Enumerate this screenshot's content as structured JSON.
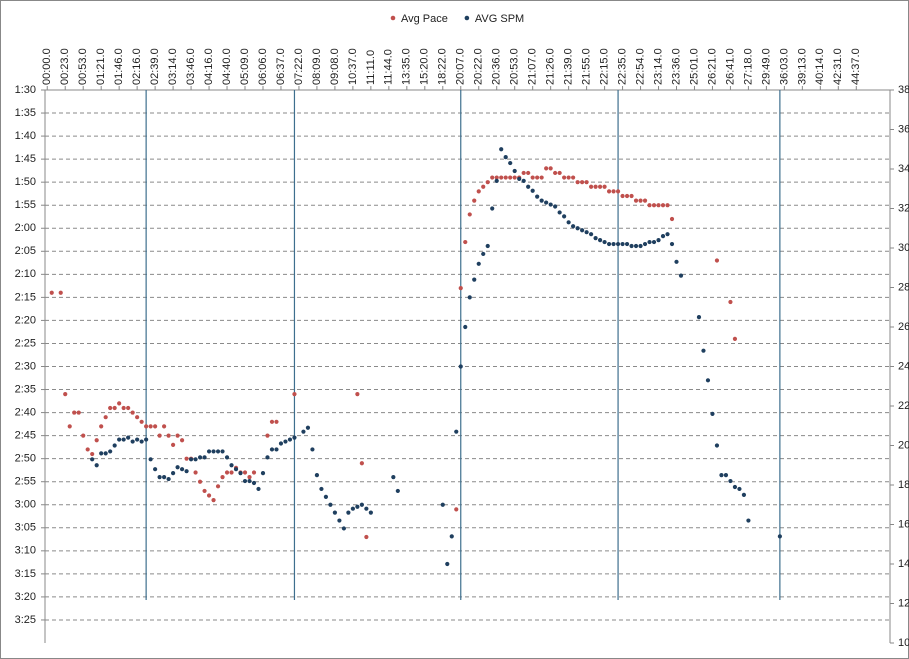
{
  "chart_data": {
    "type": "scatter",
    "legend": "top",
    "grid": true,
    "y_inverted": true,
    "categories": [
      "00:00.0",
      null,
      null,
      null,
      "00:23.0",
      null,
      null,
      null,
      "00:53.0",
      null,
      null,
      null,
      "01:21.0",
      null,
      null,
      null,
      "01:46.0",
      null,
      null,
      null,
      "02:16.0",
      null,
      null,
      null,
      "02:39.0",
      null,
      null,
      null,
      "03:14.0",
      null,
      null,
      null,
      "03:46.0",
      null,
      null,
      null,
      "04:16.0",
      null,
      null,
      null,
      "04:40.0",
      null,
      null,
      null,
      "05:09.0",
      null,
      null,
      null,
      "06:06.0",
      null,
      null,
      null,
      "06:37.0",
      null,
      null,
      null,
      "07:22.0",
      null,
      null,
      null,
      "08:09.0",
      null,
      null,
      null,
      "09:08.0",
      null,
      null,
      null,
      "10:37.0",
      null,
      null,
      null,
      "11:11.0",
      null,
      null,
      null,
      "11:44.0",
      null,
      null,
      null,
      "13:35.0",
      null,
      null,
      null,
      "15:20.0",
      null,
      null,
      null,
      "18:22.0",
      null,
      null,
      null,
      "20:07.0",
      null,
      null,
      null,
      "20:22.0",
      null,
      null,
      null,
      "20:36.0",
      null,
      null,
      null,
      "20:53.0",
      null,
      null,
      null,
      "21:07.0",
      null,
      null,
      null,
      "21:26.0",
      null,
      null,
      null,
      "21:39.0",
      null,
      null,
      null,
      "21:55.0",
      null,
      null,
      null,
      "22:15.0",
      null,
      null,
      null,
      "22:35.0",
      null,
      null,
      null,
      "22:54.0",
      null,
      null,
      null,
      "23:14.0",
      null,
      null,
      null,
      "23:36.0",
      null,
      null,
      null,
      "25:01.0",
      null,
      null,
      null,
      "26:21.0",
      null,
      null,
      null,
      "26:41.0",
      null,
      null,
      null,
      "27:18.0",
      null,
      null,
      null,
      "29:49.0",
      null,
      null,
      null,
      "36:03.0",
      null,
      null,
      null,
      "39:13.0",
      null,
      null,
      null,
      "40:14.0",
      null,
      null,
      null,
      "42:31.0",
      null,
      null,
      null,
      "44:37.0",
      null,
      null,
      null,
      null,
      null,
      null,
      null
    ],
    "series": [
      {
        "name": "Avg Pace",
        "color": "#c0504d",
        "axis": "y",
        "values": [
          null,
          134,
          null,
          134,
          156,
          163,
          160,
          160,
          165,
          168,
          169,
          166,
          163,
          161,
          159,
          159,
          158,
          159,
          159,
          160,
          161,
          162,
          163,
          163,
          163,
          165,
          163,
          165,
          167,
          165,
          166,
          170,
          170,
          173,
          175,
          177,
          178,
          179,
          176,
          174,
          173,
          173,
          172,
          173,
          173,
          174,
          173,
          null,
          null,
          165,
          162,
          162,
          null,
          null,
          null,
          156,
          null,
          null,
          null,
          null,
          null,
          null,
          null,
          null,
          null,
          null,
          null,
          null,
          null,
          156,
          171,
          187,
          null,
          null,
          null,
          null,
          null,
          null,
          null,
          null,
          null,
          null,
          null,
          null,
          null,
          null,
          null,
          null,
          null,
          null,
          null,
          181,
          133,
          123,
          117,
          114,
          112,
          111,
          110,
          109,
          109,
          109,
          109,
          109,
          109,
          109,
          108,
          108,
          109,
          109,
          109,
          107,
          107,
          108,
          108,
          109,
          109,
          109,
          110,
          110,
          110,
          111,
          111,
          111,
          111,
          112,
          112,
          112,
          113,
          113,
          113,
          114,
          114,
          114,
          115,
          115,
          115,
          115,
          115,
          118,
          null,
          null,
          null,
          null,
          null,
          null,
          null,
          null,
          null,
          127,
          null,
          null,
          136,
          144,
          null,
          null,
          null,
          null,
          null,
          null,
          null,
          null,
          null,
          null,
          null,
          null,
          null,
          null,
          null,
          null,
          null,
          null,
          null,
          null,
          null,
          null,
          null,
          null,
          null,
          null,
          null,
          null,
          null,
          null,
          null,
          null,
          null,
          null
        ]
      },
      {
        "name": "AVG SPM",
        "color": "#1f3f5f",
        "axis": "y2",
        "values": [
          null,
          null,
          null,
          null,
          null,
          null,
          null,
          null,
          null,
          null,
          19.3,
          19.0,
          19.6,
          19.6,
          19.7,
          20.0,
          20.3,
          20.3,
          20.4,
          20.2,
          20.3,
          20.2,
          20.3,
          19.3,
          18.8,
          18.4,
          18.4,
          18.3,
          18.6,
          18.9,
          18.8,
          18.7,
          19.3,
          19.3,
          19.4,
          19.4,
          19.7,
          19.7,
          19.7,
          19.7,
          19.4,
          19.0,
          18.8,
          18.6,
          18.2,
          18.2,
          18.1,
          17.8,
          18.6,
          19.4,
          19.8,
          19.8,
          20.1,
          20.2,
          20.3,
          20.4,
          null,
          20.7,
          20.9,
          19.8,
          18.5,
          17.8,
          17.4,
          17.0,
          16.6,
          16.2,
          15.8,
          16.6,
          16.8,
          16.9,
          17.0,
          16.8,
          16.6,
          null,
          null,
          null,
          null,
          18.4,
          17.7,
          null,
          null,
          null,
          null,
          null,
          null,
          null,
          null,
          null,
          17.0,
          14.0,
          15.4,
          20.7,
          24.0,
          26.0,
          27.5,
          28.4,
          29.2,
          29.7,
          30.1,
          32.0,
          33.4,
          35.0,
          34.6,
          34.3,
          33.9,
          33.5,
          33.4,
          33.1,
          32.9,
          32.6,
          32.4,
          32.3,
          32.2,
          32.1,
          31.8,
          31.6,
          31.3,
          31.1,
          31.0,
          30.9,
          30.8,
          30.7,
          30.5,
          30.4,
          30.3,
          30.2,
          30.2,
          30.2,
          30.2,
          30.2,
          30.1,
          30.1,
          30.1,
          30.2,
          30.3,
          30.3,
          30.4,
          30.6,
          30.7,
          30.2,
          29.3,
          28.6,
          null,
          null,
          null,
          26.5,
          24.8,
          23.3,
          21.6,
          20.0,
          18.5,
          18.5,
          18.2,
          17.9,
          17.8,
          17.5,
          16.2,
          null,
          null,
          null,
          null,
          null,
          null,
          15.4,
          null,
          null,
          null,
          null,
          null,
          null,
          null,
          null,
          null,
          null,
          null,
          null,
          null,
          null,
          null,
          null,
          null,
          null,
          null,
          null,
          null,
          null,
          null,
          null
        ]
      }
    ],
    "vertical_lines": [
      22,
      55,
      92,
      127,
      163
    ],
    "vertical_line_color": "#3e6f8e",
    "ylim": [
      90,
      210
    ],
    "yticks": [
      {
        "value": 90,
        "label": "1:30"
      },
      {
        "value": 95,
        "label": "1:35"
      },
      {
        "value": 100,
        "label": "1:40"
      },
      {
        "value": 105,
        "label": "1:45"
      },
      {
        "value": 110,
        "label": "1:50"
      },
      {
        "value": 115,
        "label": "1:55"
      },
      {
        "value": 120,
        "label": "2:00"
      },
      {
        "value": 125,
        "label": "2:05"
      },
      {
        "value": 130,
        "label": "2:10"
      },
      {
        "value": 135,
        "label": "2:15"
      },
      {
        "value": 140,
        "label": "2:20"
      },
      {
        "value": 145,
        "label": "2:25"
      },
      {
        "value": 150,
        "label": "2:30"
      },
      {
        "value": 155,
        "label": "2:35"
      },
      {
        "value": 160,
        "label": "2:40"
      },
      {
        "value": 165,
        "label": "2:45"
      },
      {
        "value": 170,
        "label": "2:50"
      },
      {
        "value": 175,
        "label": "2:55"
      },
      {
        "value": 180,
        "label": "3:00"
      },
      {
        "value": 185,
        "label": "3:05"
      },
      {
        "value": 190,
        "label": "3:10"
      },
      {
        "value": 195,
        "label": "3:15"
      },
      {
        "value": 200,
        "label": "3:20"
      },
      {
        "value": 205,
        "label": "3:25"
      }
    ],
    "y2lim": [
      10,
      38
    ],
    "y2ticks": [
      10,
      12,
      14,
      16,
      18,
      20,
      22,
      24,
      26,
      28,
      30,
      32,
      34,
      36,
      38
    ]
  }
}
